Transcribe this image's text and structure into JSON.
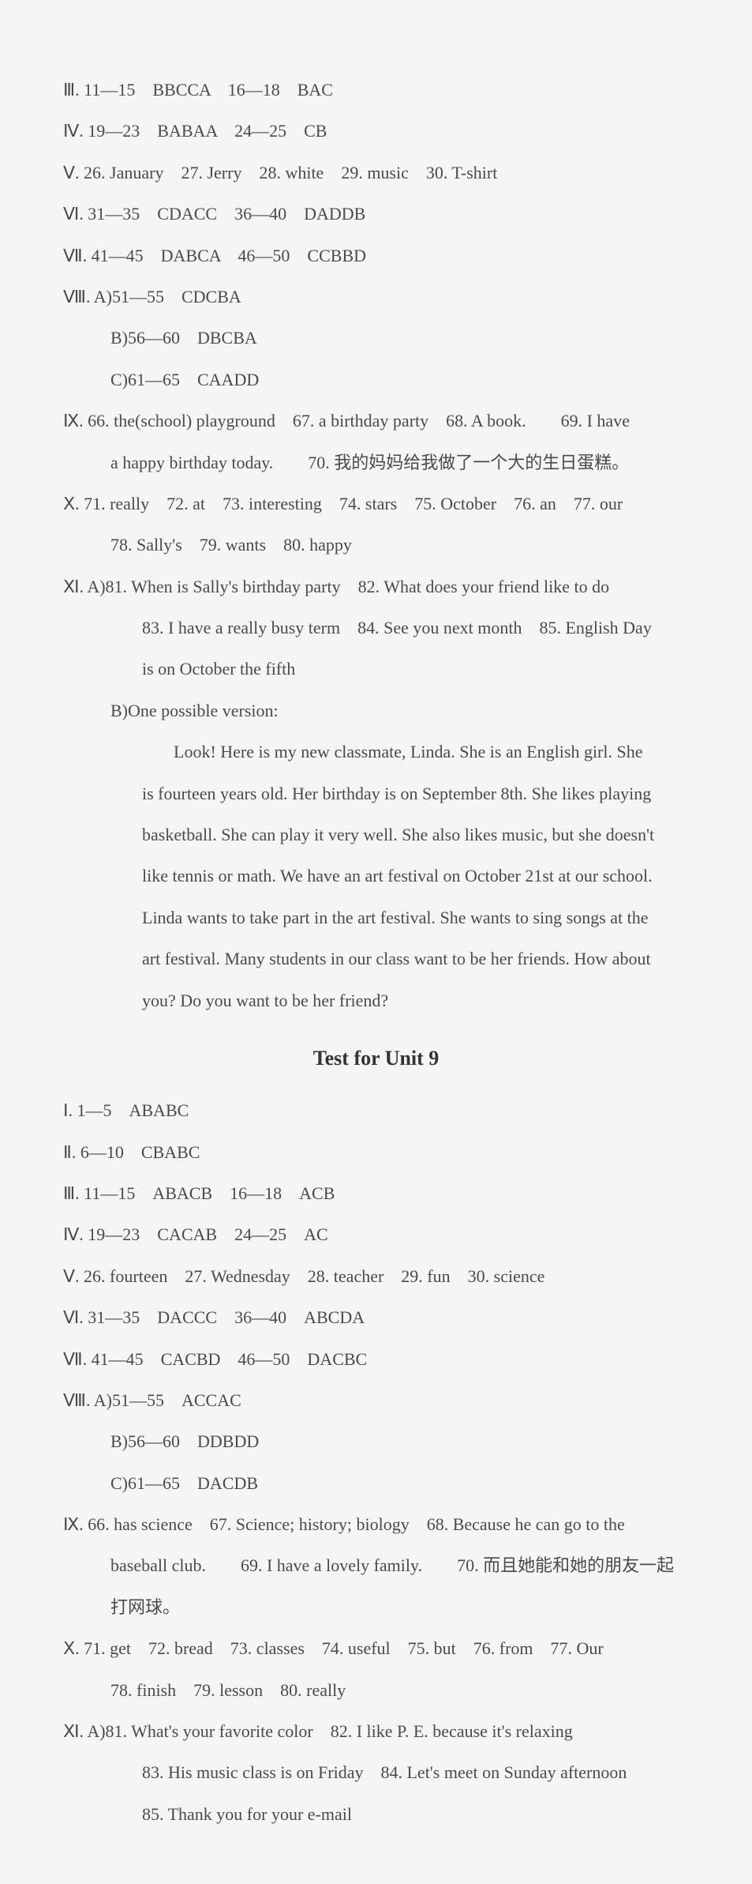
{
  "section1": {
    "l3": "Ⅲ. 11—15　BBCCA　16—18　BAC",
    "l4": "Ⅳ. 19—23　BABAA　24—25　CB",
    "l5": "Ⅴ. 26. January　27. Jerry　28. white　29. music　30. T-shirt",
    "l6": "Ⅵ. 31—35　CDACC　36—40　DADDB",
    "l7": "Ⅶ. 41—45　DABCA　46—50　CCBBD",
    "l8a": "Ⅷ. A)51—55　CDCBA",
    "l8b": "B)56—60　DBCBA",
    "l8c": "C)61—65　CAADD",
    "l9a": "Ⅸ. 66. the(school) playground　67. a birthday party　68. A book.　　69. I have",
    "l9b": "a happy birthday today.　　70. 我的妈妈给我做了一个大的生日蛋糕。",
    "l10a": "Ⅹ. 71. really　72. at　73. interesting　74. stars　75. October　76. an　77. our",
    "l10b": "78. Sally's　79. wants　80. happy",
    "l11a": "Ⅺ. A)81. When is Sally's birthday party　82. What does your friend like to do",
    "l11b": "83. I have a really busy term　84. See you next month　85. English Day",
    "l11c": "is on October the fifth",
    "l11d": "B)One possible version:",
    "para1": "Look! Here is my new classmate, Linda. She is an English girl. She",
    "para2": "is fourteen years old. Her birthday is on September 8th. She likes playing",
    "para3": "basketball. She can play it very well. She also likes music, but she doesn't",
    "para4": "like tennis or math. We have an art festival on October 21st at our school.",
    "para5": "Linda wants to take part in the art festival. She wants to sing songs at the",
    "para6": "art festival. Many students in our class want to be her friends. How about",
    "para7": "you? Do you want to be her friend?"
  },
  "title2": "Test for Unit 9",
  "section2": {
    "l1": "Ⅰ. 1—5　ABABC",
    "l2": "Ⅱ. 6—10　CBABC",
    "l3": "Ⅲ. 11—15　ABACB　16—18　ACB",
    "l4": "Ⅳ. 19—23　CACAB　24—25　AC",
    "l5": "Ⅴ. 26. fourteen　27. Wednesday　28. teacher　29. fun　30. science",
    "l6": "Ⅵ. 31—35　DACCC　36—40　ABCDA",
    "l7": "Ⅶ. 41—45　CACBD　46—50　DACBC",
    "l8a": "Ⅷ. A)51—55　ACCAC",
    "l8b": "B)56—60　DDBDD",
    "l8c": "C)61—65　DACDB",
    "l9a": "Ⅸ. 66. has science　67. Science; history; biology　68. Because he can go to the",
    "l9b": "baseball club.　　69. I have a lovely family.　　70. 而且她能和她的朋友一起",
    "l9c": "打网球。",
    "l10a": "Ⅹ. 71. get　72. bread　73. classes　74. useful　75. but　76. from　77. Our",
    "l10b": "78. finish　79. lesson　80. really",
    "l11a": "Ⅺ. A)81. What's your favorite color　82. I like P. E. because it's relaxing",
    "l11b": "83. His music class is on Friday　84. Let's meet on Sunday afternoon",
    "l11c": "85. Thank you for your e-mail"
  }
}
